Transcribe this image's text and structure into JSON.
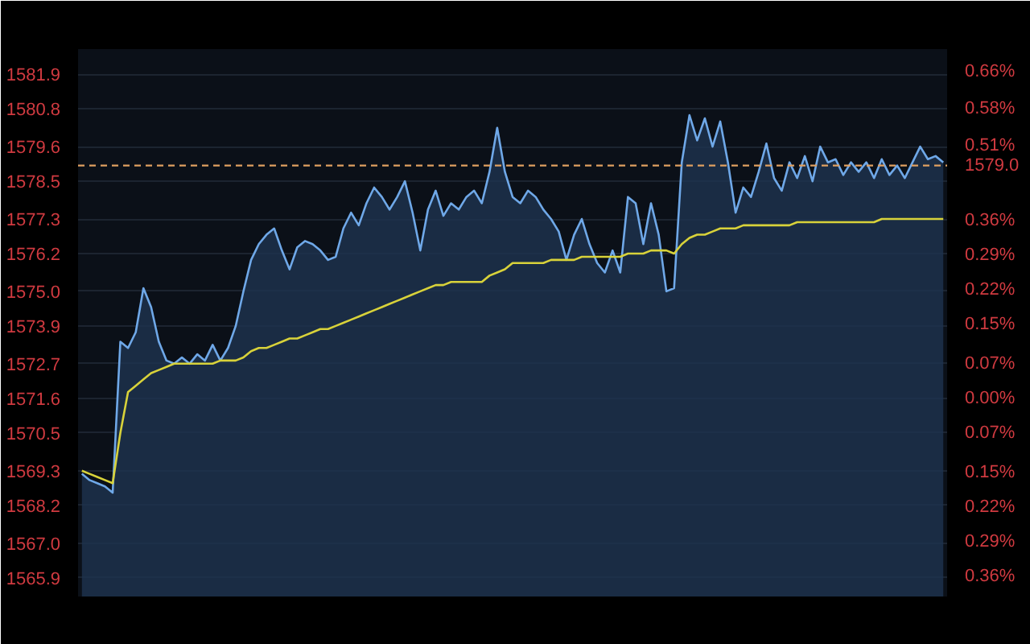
{
  "chart_data": {
    "type": "line",
    "categories": [
      null,
      null,
      null,
      null,
      null,
      null,
      null,
      null,
      null,
      null,
      null,
      null,
      null,
      null,
      null,
      null,
      null,
      null,
      null,
      null,
      null,
      null,
      null,
      null,
      null,
      null,
      null,
      null,
      null,
      null,
      null,
      null,
      null,
      null,
      null,
      null,
      null,
      null,
      null,
      null,
      null,
      null,
      null,
      null,
      null,
      null,
      null,
      null,
      null,
      null,
      null,
      null,
      null,
      null,
      null,
      null,
      null,
      null,
      null,
      null,
      null,
      null,
      null,
      null,
      null,
      null,
      null,
      null,
      null,
      null,
      null,
      null,
      null,
      null,
      null,
      null,
      null,
      null,
      null,
      null,
      null,
      null,
      null,
      null,
      null,
      null,
      null,
      null,
      null,
      null,
      null,
      null,
      null,
      null,
      null,
      null,
      null,
      null,
      null,
      null,
      null,
      null,
      null,
      null,
      null,
      null,
      null,
      null,
      null,
      null,
      null,
      null,
      null
    ],
    "series": [
      {
        "type": "area",
        "color": "#6fa8e8",
        "values": [
          1569.2,
          1569.0,
          1568.9,
          1568.8,
          1568.6,
          1573.4,
          1573.2,
          1573.7,
          1575.1,
          1574.5,
          1573.4,
          1572.8,
          1572.7,
          1572.9,
          1572.7,
          1573.0,
          1572.8,
          1573.3,
          1572.8,
          1573.2,
          1573.9,
          1575.0,
          1576.0,
          1576.5,
          1576.8,
          1577.0,
          1576.3,
          1575.7,
          1576.4,
          1576.6,
          1576.5,
          1576.3,
          1576.0,
          1576.1,
          1577.0,
          1577.5,
          1577.1,
          1577.8,
          1578.3,
          1578.0,
          1577.6,
          1578.0,
          1578.5,
          1577.5,
          1576.3,
          1577.6,
          1578.2,
          1577.4,
          1577.8,
          1577.6,
          1578.0,
          1578.2,
          1577.8,
          1578.8,
          1580.2,
          1578.8,
          1578.0,
          1577.8,
          1578.2,
          1578.0,
          1577.6,
          1577.3,
          1576.9,
          1576.0,
          1576.8,
          1577.3,
          1576.5,
          1575.9,
          1575.6,
          1576.3,
          1575.6,
          1578.0,
          1577.8,
          1576.5,
          1577.8,
          1576.8,
          1575.0,
          1575.1,
          1579.1,
          1580.6,
          1579.8,
          1580.5,
          1579.6,
          1580.4,
          1579.1,
          1577.5,
          1578.3,
          1578.0,
          1578.8,
          1579.7,
          1578.6,
          1578.2,
          1579.1,
          1578.6,
          1579.3,
          1578.5,
          1579.6,
          1579.1,
          1579.2,
          1578.7,
          1579.1,
          1578.8,
          1579.1,
          1578.6,
          1579.2,
          1578.7,
          1579.0,
          1578.6,
          1579.1,
          1579.6,
          1579.2,
          1579.3,
          1579.1
        ]
      },
      {
        "color": "#d8d23a",
        "values": [
          1569.3,
          1569.2,
          1569.1,
          1569.0,
          1568.9,
          1570.5,
          1571.8,
          1572.0,
          1572.2,
          1572.4,
          1572.5,
          1572.6,
          1572.7,
          1572.7,
          1572.7,
          1572.7,
          1572.7,
          1572.7,
          1572.8,
          1572.8,
          1572.8,
          1572.9,
          1573.1,
          1573.2,
          1573.2,
          1573.3,
          1573.4,
          1573.5,
          1573.5,
          1573.6,
          1573.7,
          1573.8,
          1573.8,
          1573.9,
          1574.0,
          1574.1,
          1574.2,
          1574.3,
          1574.4,
          1574.5,
          1574.6,
          1574.7,
          1574.8,
          1574.9,
          1575.0,
          1575.1,
          1575.2,
          1575.2,
          1575.3,
          1575.3,
          1575.3,
          1575.3,
          1575.3,
          1575.5,
          1575.6,
          1575.7,
          1575.9,
          1575.9,
          1575.9,
          1575.9,
          1575.9,
          1576.0,
          1576.0,
          1576.0,
          1576.0,
          1576.1,
          1576.1,
          1576.1,
          1576.1,
          1576.1,
          1576.1,
          1576.2,
          1576.2,
          1576.2,
          1576.3,
          1576.3,
          1576.3,
          1576.2,
          1576.5,
          1576.7,
          1576.8,
          1576.8,
          1576.9,
          1577.0,
          1577.0,
          1577.0,
          1577.1,
          1577.1,
          1577.1,
          1577.1,
          1577.1,
          1577.1,
          1577.1,
          1577.2,
          1577.2,
          1577.2,
          1577.2,
          1577.2,
          1577.2,
          1577.2,
          1577.2,
          1577.2,
          1577.2,
          1577.2,
          1577.3,
          1577.3,
          1577.3,
          1577.3,
          1577.3,
          1577.3,
          1577.3,
          1577.3,
          1577.3
        ]
      }
    ],
    "ylim": [
      1565.3,
      1582.7
    ],
    "yticks": [
      1565.9,
      {
        "value": 1567.0,
        "label": "1567.0"
      },
      1568.2,
      1569.3,
      1570.5,
      1571.6,
      1572.7,
      1573.9,
      {
        "value": 1575.0,
        "label": "1575.0"
      },
      1576.2,
      1577.3,
      1578.5,
      1579.6,
      1580.8,
      1581.9
    ],
    "y2lim": [
      -0.401,
      0.706
    ],
    "y2ticks": [
      {
        "value": -0.36,
        "label": "0.36%"
      },
      {
        "value": -0.29,
        "label": "0.29%"
      },
      {
        "value": -0.22,
        "label": "0.22%"
      },
      {
        "value": -0.15,
        "label": "0.15%"
      },
      {
        "value": -0.07,
        "label": "0.07%"
      },
      {
        "value": 0,
        "label": "0.00%"
      },
      {
        "value": 0.07,
        "label": "0.07%"
      },
      {
        "value": 0.15,
        "label": "0.15%"
      },
      {
        "value": 0.22,
        "label": "0.22%"
      },
      {
        "value": 0.29,
        "label": "0.29%"
      },
      {
        "value": 0.36,
        "label": "0.36%"
      },
      {
        "value": 0.44,
        "label": null
      },
      {
        "value": 0.51,
        "label": "0.51%"
      },
      {
        "value": 0.585,
        "label": "0.58%"
      },
      {
        "value": 0.66,
        "label": "0.66%"
      }
    ],
    "ref_lines": [
      {
        "axis": "y",
        "value": 1579.0,
        "label": "1579.0",
        "color": "#e0a060",
        "line_style": "dashed"
      }
    ],
    "grid": "y"
  }
}
